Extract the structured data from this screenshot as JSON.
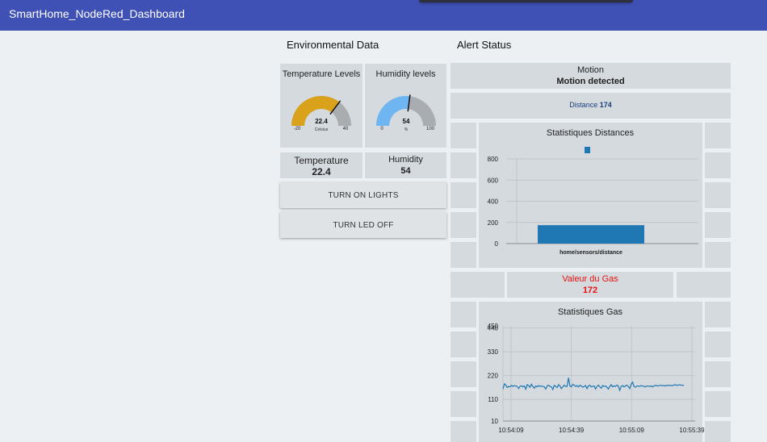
{
  "header": {
    "title": "SmartHome_NodeRed_Dashboard"
  },
  "groups": {
    "environmental": "Environmental Data",
    "alerts": "Alert Status"
  },
  "gauges": {
    "temperature": {
      "title": "Temperature Levels",
      "value": 22.4,
      "value_text": "22.4",
      "min": -20,
      "max": 40,
      "min_text": "-20",
      "max_text": "40",
      "units": "Celsius",
      "color": "#daa21a"
    },
    "humidity": {
      "title": "Humidity levels",
      "value": 54,
      "value_text": "54",
      "min": 0,
      "max": 100,
      "min_text": "0",
      "max_text": "100",
      "units": "%",
      "color": "#6eb5f2"
    }
  },
  "readouts": {
    "temperature": {
      "label": "Temperature",
      "value": "22.4"
    },
    "humidity": {
      "label": "Humidity",
      "value": "54"
    }
  },
  "buttons": {
    "lights_on": "TURN ON LIGHTS",
    "led_off": "TURN LED OFF"
  },
  "motion": {
    "label": "Motion",
    "value": "Motion detected"
  },
  "distance": {
    "label": "Distance",
    "value": "174"
  },
  "gas": {
    "label": "Valeur du Gas",
    "value": "172",
    "color": "#e81010"
  },
  "colors": {
    "accent": "#3f51b5",
    "series": "#1f77b4",
    "alert": "#e81010"
  },
  "chart_data": [
    {
      "type": "bar",
      "title": "Statistiques Distances",
      "categories": [
        "home/sensors/distance"
      ],
      "values": [
        174
      ],
      "ylim": [
        0,
        800
      ],
      "yticks": [
        0,
        200,
        400,
        600,
        800
      ],
      "legend_color": "#1f77b4",
      "grid": true
    },
    {
      "type": "line",
      "title": "Statistiques Gas",
      "ylim": [
        10,
        450
      ],
      "yticks": [
        10,
        110,
        220,
        330,
        440,
        450
      ],
      "xticks": [
        "10:54:09",
        "10:54:39",
        "10:55:09",
        "10:55:39"
      ],
      "x_start": "10:54:05",
      "x_end": "10:55:35",
      "values": [
        158,
        182,
        176,
        165,
        170,
        168,
        175,
        170,
        174,
        172,
        170,
        160,
        171,
        173,
        168,
        172,
        157,
        178,
        174,
        166,
        180,
        170,
        162,
        172,
        168,
        174,
        170,
        172,
        170,
        168,
        158,
        172,
        176,
        170,
        168,
        156,
        175,
        170,
        165,
        178,
        172,
        160,
        168,
        176,
        170,
        170,
        210,
        172,
        168,
        180,
        176,
        170,
        174,
        168,
        175,
        172,
        166,
        170,
        174,
        160,
        172,
        176,
        168,
        170,
        172,
        158,
        170,
        176,
        168,
        162,
        174,
        170,
        172,
        166,
        158,
        170,
        178,
        168,
        172,
        170,
        176,
        172,
        152,
        170,
        174,
        168,
        172,
        176,
        170,
        160,
        180,
        190,
        170,
        166,
        172,
        172,
        170,
        174,
        172,
        170,
        168,
        172,
        172,
        170,
        172,
        168,
        172,
        175,
        174,
        172,
        174,
        176,
        173,
        174,
        172,
        176,
        174,
        175,
        174,
        174,
        176,
        178,
        175,
        176,
        178,
        176,
        174,
        176
      ]
    }
  ]
}
